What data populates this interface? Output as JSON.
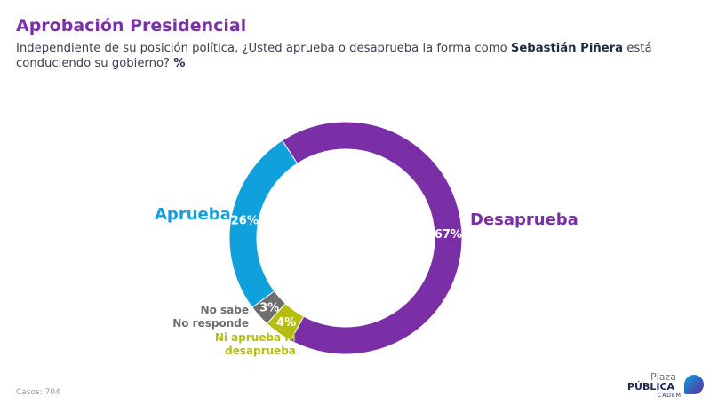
{
  "title": "Aprobación Presidencial",
  "subtitle": {
    "pre": "Independiente de su posición política, ¿Usted aprueba o desaprueba la forma como ",
    "bold": "Sebastián Piñera",
    "post": " está conduciendo su gobierno? ",
    "unit": "%"
  },
  "chart_data": {
    "type": "pie",
    "variant": "donut",
    "unit": "%",
    "slices": [
      {
        "name": "Desaprueba",
        "value": 67,
        "label": "67%",
        "color": "#7b2fa6"
      },
      {
        "name": "Ni aprueba ni desaprueba",
        "value": 4,
        "label": "4%",
        "color": "#b4bd10"
      },
      {
        "name": "No sabe No responde",
        "value": 3,
        "label": "3%",
        "color": "#6e6e6e"
      },
      {
        "name": "Aprueba",
        "value": 26,
        "label": "26%",
        "color": "#10a0dc"
      }
    ]
  },
  "labels": {
    "desaprueba": "Desaprueba",
    "aprueba": "Aprueba",
    "nsnr_1": "No sabe",
    "nsnr_2": "No responde",
    "ni_1": "Ni aprueba ni",
    "ni_2": "desaprueba"
  },
  "footer": {
    "casos_label": "Casos",
    "casos_value": ": 704"
  },
  "logo": {
    "line1": "Plaza",
    "line2": "PÚBLICA",
    "line3": "CADEM"
  }
}
